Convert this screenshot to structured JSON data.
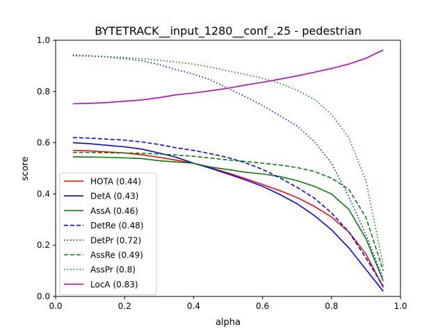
{
  "chart_data": {
    "type": "line",
    "title": "BYTETRACK__input_1280__conf_.25 - pedestrian",
    "xlabel": "alpha",
    "ylabel": "score",
    "xlim": [
      0.0,
      1.0
    ],
    "ylim": [
      0.0,
      1.0
    ],
    "xticks": [
      "0.0",
      "0.2",
      "0.4",
      "0.6",
      "0.8",
      "1.0"
    ],
    "yticks": [
      "0.0",
      "0.2",
      "0.4",
      "0.6",
      "0.8",
      "1.0"
    ],
    "grid": false,
    "legend_position": "lower-left",
    "x": [
      0.05,
      0.1,
      0.15,
      0.2,
      0.25,
      0.3,
      0.35,
      0.4,
      0.45,
      0.5,
      0.55,
      0.6,
      0.65,
      0.7,
      0.75,
      0.8,
      0.85,
      0.9,
      0.95
    ],
    "series": [
      {
        "name": "HOTA (0.44)",
        "color": "#ff0000",
        "dash": "solid",
        "values": [
          0.57,
          0.568,
          0.564,
          0.56,
          0.553,
          0.543,
          0.532,
          0.52,
          0.502,
          0.482,
          0.46,
          0.437,
          0.413,
          0.386,
          0.352,
          0.31,
          0.252,
          0.165,
          0.035
        ]
      },
      {
        "name": "DetA (0.43)",
        "color": "#0000ff",
        "dash": "solid",
        "values": [
          0.6,
          0.596,
          0.59,
          0.584,
          0.575,
          0.56,
          0.543,
          0.52,
          0.5,
          0.478,
          0.455,
          0.43,
          0.398,
          0.362,
          0.316,
          0.26,
          0.19,
          0.105,
          0.02
        ]
      },
      {
        "name": "AssA (0.46)",
        "color": "#008000",
        "dash": "solid",
        "values": [
          0.545,
          0.544,
          0.543,
          0.541,
          0.538,
          0.53,
          0.525,
          0.52,
          0.505,
          0.495,
          0.485,
          0.478,
          0.468,
          0.452,
          0.43,
          0.4,
          0.34,
          0.225,
          0.06
        ]
      },
      {
        "name": "DetRe (0.48)",
        "color": "#0000ff",
        "dash": "dashed",
        "values": [
          0.62,
          0.618,
          0.614,
          0.61,
          0.603,
          0.593,
          0.58,
          0.57,
          0.557,
          0.542,
          0.522,
          0.496,
          0.463,
          0.426,
          0.384,
          0.326,
          0.252,
          0.15,
          0.04
        ]
      },
      {
        "name": "DetPr (0.72)",
        "color": "#0000ff",
        "dash": "dotted",
        "values": [
          0.94,
          0.938,
          0.935,
          0.928,
          0.92,
          0.905,
          0.885,
          0.868,
          0.845,
          0.812,
          0.78,
          0.745,
          0.705,
          0.665,
          0.605,
          0.52,
          0.39,
          0.24,
          0.07
        ]
      },
      {
        "name": "AssRe (0.49)",
        "color": "#008000",
        "dash": "dashed",
        "values": [
          0.562,
          0.562,
          0.561,
          0.56,
          0.559,
          0.556,
          0.552,
          0.547,
          0.54,
          0.533,
          0.527,
          0.52,
          0.513,
          0.503,
          0.488,
          0.462,
          0.418,
          0.308,
          0.1
        ]
      },
      {
        "name": "AssPr (0.8)",
        "color": "#008000",
        "dash": "dotted",
        "values": [
          0.943,
          0.94,
          0.936,
          0.933,
          0.928,
          0.922,
          0.915,
          0.907,
          0.895,
          0.88,
          0.867,
          0.852,
          0.832,
          0.805,
          0.77,
          0.71,
          0.62,
          0.45,
          0.12
        ]
      },
      {
        "name": "LocA (0.83)",
        "color": "#bf00bf",
        "dash": "solid",
        "values": [
          0.752,
          0.754,
          0.757,
          0.762,
          0.767,
          0.776,
          0.787,
          0.794,
          0.803,
          0.813,
          0.825,
          0.836,
          0.848,
          0.861,
          0.875,
          0.89,
          0.907,
          0.93,
          0.962
        ]
      }
    ]
  }
}
